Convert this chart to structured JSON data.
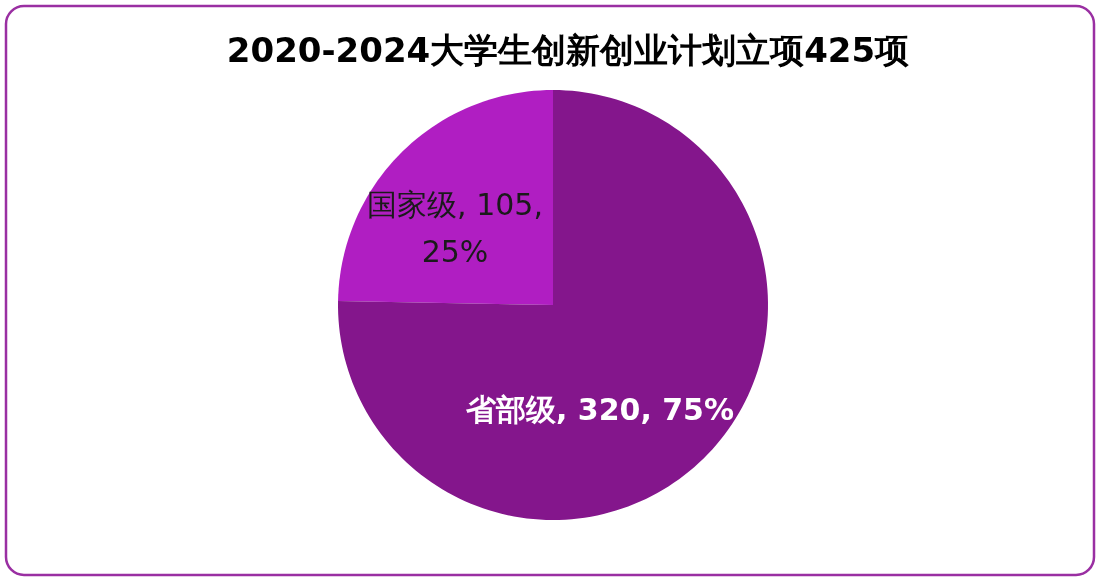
{
  "chart_data": {
    "type": "pie",
    "title": "2020-2024大学生创新创业计划立项425项",
    "categories": [
      "国家级",
      "省部级"
    ],
    "values": [
      105,
      320
    ],
    "value_labels": [
      ", 105, 25%",
      ", 320, 75%"
    ],
    "colors": [
      "#b01ec2",
      "#84168c"
    ],
    "legend": false
  }
}
